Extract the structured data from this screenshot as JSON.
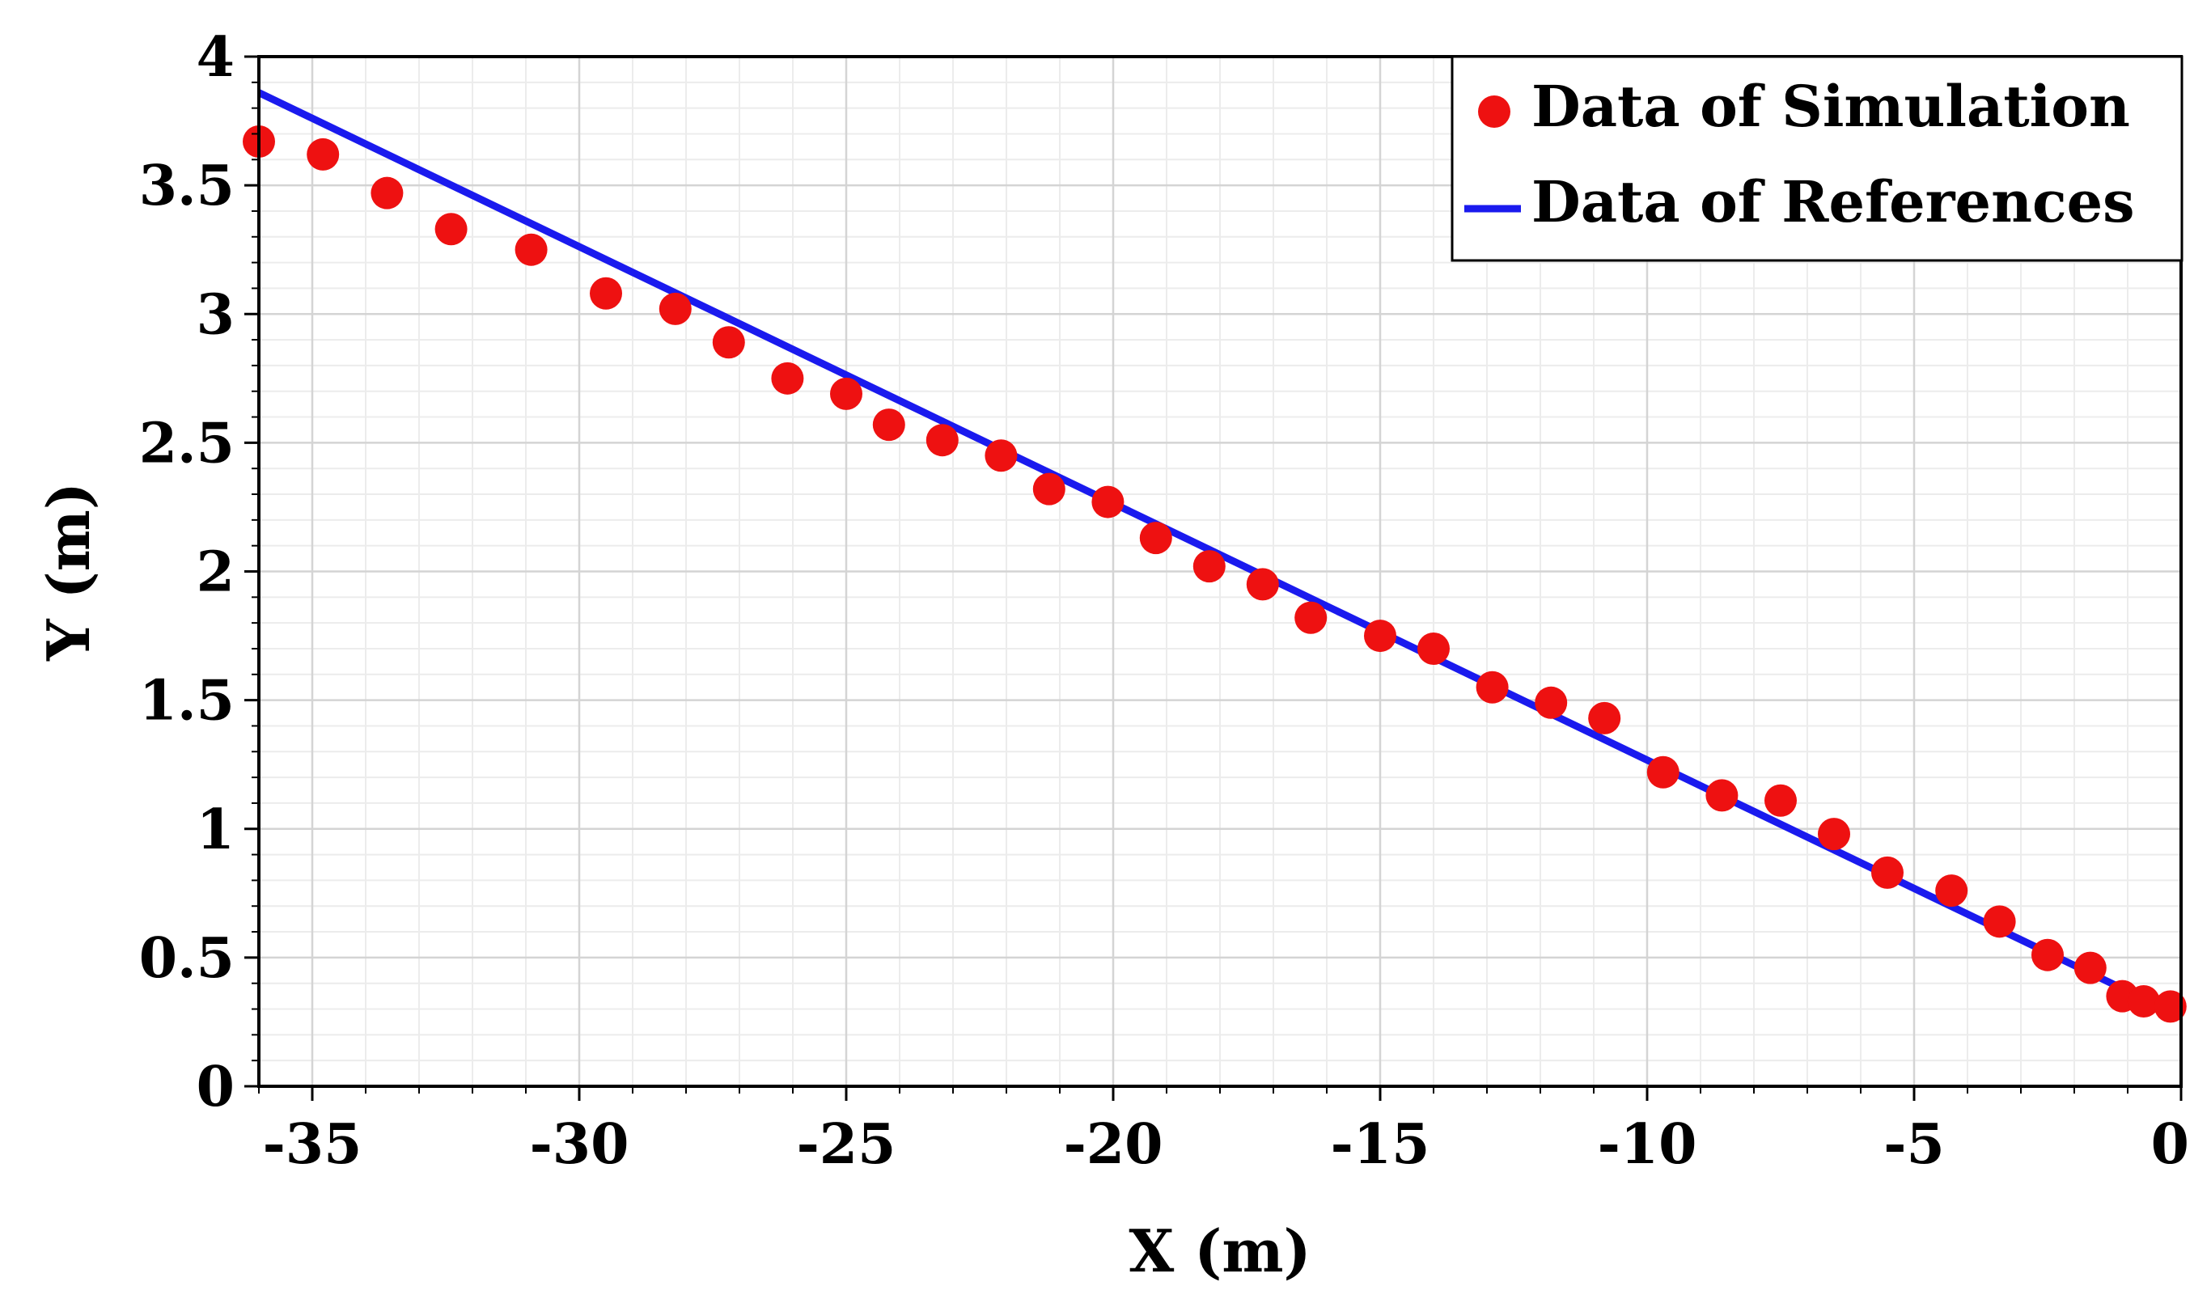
{
  "chart_data": {
    "type": "scatter",
    "title": "",
    "xlabel": "X (m)",
    "ylabel": "Y (m)",
    "xlim": [
      -36,
      0
    ],
    "ylim": [
      0,
      4
    ],
    "xticks": [
      -35,
      -30,
      -25,
      -20,
      -15,
      -10,
      -5,
      0
    ],
    "yticks": [
      0,
      0.5,
      1,
      1.5,
      2,
      2.5,
      3,
      3.5,
      4
    ],
    "xtick_labels": [
      "-35",
      "-30",
      "-25",
      "-20",
      "-15",
      "-10",
      "-5",
      "0"
    ],
    "ytick_labels": [
      "0",
      "0.5",
      "1",
      "1.5",
      "2",
      "2.5",
      "3",
      "3.5",
      "4"
    ],
    "x_minor_step": 1,
    "y_minor_step": 0.1,
    "grid": true,
    "legend_position": "top-right",
    "series": [
      {
        "name": "Data of Simulation",
        "kind": "scatter",
        "color": "#ee1111",
        "x": [
          -36.0,
          -34.8,
          -33.6,
          -32.4,
          -30.9,
          -29.5,
          -28.2,
          -27.2,
          -26.1,
          -25.0,
          -24.2,
          -23.2,
          -22.1,
          -21.2,
          -20.1,
          -19.2,
          -18.2,
          -17.2,
          -16.3,
          -15.0,
          -14.0,
          -12.9,
          -11.8,
          -10.8,
          -9.7,
          -8.6,
          -7.5,
          -6.5,
          -5.5,
          -4.3,
          -3.4,
          -2.5,
          -1.7,
          -1.1,
          -0.7,
          -0.2
        ],
        "y": [
          3.67,
          3.62,
          3.47,
          3.33,
          3.25,
          3.08,
          3.02,
          2.89,
          2.75,
          2.69,
          2.57,
          2.51,
          2.45,
          2.32,
          2.27,
          2.13,
          2.02,
          1.95,
          1.82,
          1.75,
          1.7,
          1.55,
          1.49,
          1.43,
          1.22,
          1.13,
          1.11,
          0.98,
          0.83,
          0.76,
          0.64,
          0.51,
          0.46,
          0.35,
          0.33,
          0.31
        ]
      },
      {
        "name": "Data of References",
        "kind": "line",
        "color": "#1a1aee",
        "x": [
          -36,
          0
        ],
        "y": [
          3.86,
          0.27
        ]
      }
    ]
  }
}
